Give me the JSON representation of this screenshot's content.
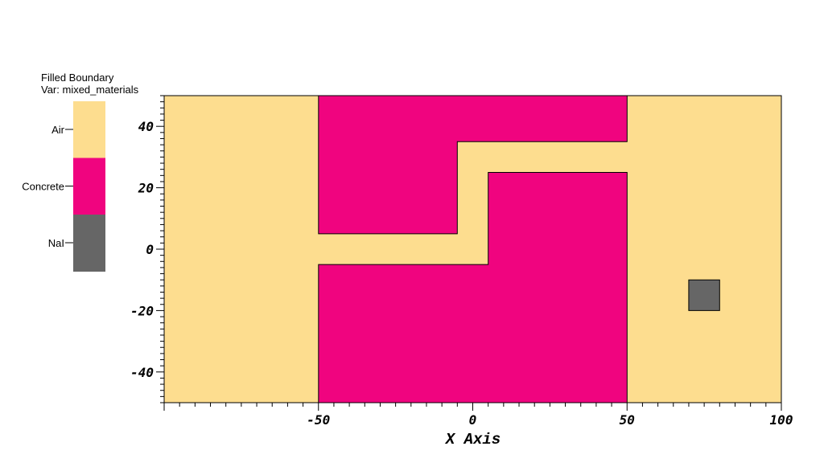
{
  "legend": {
    "title": "Filled Boundary",
    "var_label": "Var: mixed_materials",
    "items": [
      {
        "label": "Air",
        "color": "#fddd8f"
      },
      {
        "label": "Concrete",
        "color": "#f0047f"
      },
      {
        "label": "NaI",
        "color": "#666666"
      }
    ]
  },
  "chart_data": {
    "type": "filled-boundary",
    "xlabel": "X Axis",
    "ylabel": "",
    "xlim": [
      -100,
      100
    ],
    "ylim": [
      -50,
      50
    ],
    "xticks": [
      -50,
      0,
      50,
      100
    ],
    "yticks": [
      -40,
      -20,
      0,
      20,
      40
    ],
    "xtick_labels": [
      "-50",
      "0",
      "50",
      "100"
    ],
    "ytick_labels": [
      "-40",
      "-20",
      "0",
      "20",
      "40"
    ],
    "regions": [
      {
        "material": "Air",
        "polygon": [
          [
            -100,
            -50
          ],
          [
            100,
            -50
          ],
          [
            100,
            50
          ],
          [
            -100,
            50
          ]
        ]
      },
      {
        "material": "Concrete",
        "polygon": [
          [
            -50,
            50
          ],
          [
            50,
            50
          ],
          [
            50,
            35
          ],
          [
            -5,
            35
          ],
          [
            -5,
            5
          ],
          [
            -50,
            5
          ]
        ]
      },
      {
        "material": "Concrete",
        "polygon": [
          [
            -50,
            -5
          ],
          [
            5,
            -5
          ],
          [
            5,
            25
          ],
          [
            50,
            25
          ],
          [
            50,
            -50
          ],
          [
            -50,
            -50
          ]
        ]
      },
      {
        "material": "NaI",
        "polygon": [
          [
            70,
            -20
          ],
          [
            80,
            -20
          ],
          [
            80,
            -10
          ],
          [
            70,
            -10
          ]
        ]
      }
    ]
  }
}
